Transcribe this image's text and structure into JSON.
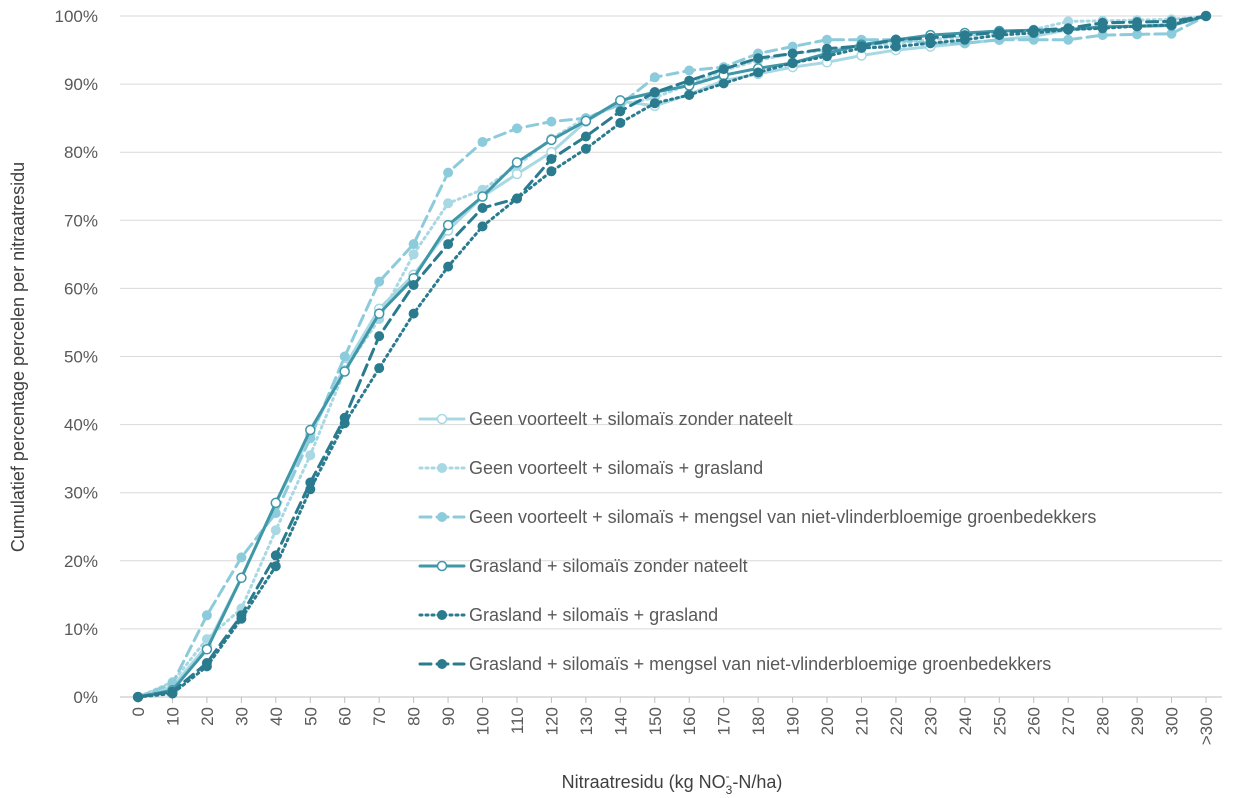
{
  "chart_data": {
    "type": "line",
    "title": "",
    "xlabel_parts": {
      "main": "Nitraatresidu (kg NO",
      "sub": "3",
      "sup": "-",
      "tail": "-N/ha)"
    },
    "ylabel": "Cumulatief percentage percelen per nitraatresidu",
    "categories": [
      "0",
      "10",
      "20",
      "30",
      "40",
      "50",
      "60",
      "70",
      "80",
      "90",
      "100",
      "110",
      "120",
      "130",
      "140",
      "150",
      "160",
      "170",
      "180",
      "190",
      "200",
      "210",
      "220",
      "230",
      "240",
      "250",
      "260",
      "270",
      "280",
      "290",
      "300",
      ">300"
    ],
    "ylim": [
      0,
      100
    ],
    "yticks": [
      0,
      10,
      20,
      30,
      40,
      50,
      60,
      70,
      80,
      90,
      100
    ],
    "ytick_labels": [
      "0%",
      "10%",
      "20%",
      "30%",
      "40%",
      "50%",
      "60%",
      "70%",
      "80%",
      "90%",
      "100%"
    ],
    "grid": "horizontal",
    "legend_position": "inside-center-right",
    "series": [
      {
        "name": "Geen voorteelt + silomaïs zonder nateelt",
        "color": "#a8d8e4",
        "dash": "solid",
        "marker": "open-circle",
        "values": [
          0,
          1.5,
          7.5,
          17.5,
          28.5,
          38.5,
          48.5,
          57,
          62,
          68.5,
          73.5,
          76.8,
          80,
          84.5,
          87.5,
          86.8,
          88.5,
          90.5,
          91.5,
          92.5,
          93.2,
          94.2,
          95,
          95.5,
          96,
          96.5,
          97,
          98,
          98.5,
          98.5,
          98.8,
          100
        ]
      },
      {
        "name": "Geen voorteelt + silomaïs + grasland",
        "color": "#a8d8e4",
        "dash": "dotted",
        "marker": "filled-circle",
        "values": [
          0,
          2.2,
          8.5,
          13,
          24.5,
          35.5,
          48,
          55.5,
          65,
          72.5,
          74.5,
          78,
          82,
          85,
          87,
          88,
          90,
          92,
          93.5,
          94.5,
          95,
          95.5,
          96,
          96.5,
          97,
          97.5,
          98,
          99.2,
          99.3,
          99.4,
          99.5,
          100
        ]
      },
      {
        "name": "Geen voorteelt + silomaïs + mengsel van niet-vlinderbloemige groenbedekkers",
        "color": "#8ccbdb",
        "dash": "dashed",
        "marker": "filled-circle",
        "values": [
          0,
          2,
          12,
          20.5,
          27,
          38,
          50,
          61,
          66.5,
          77,
          81.5,
          83.5,
          84.5,
          85,
          87,
          91,
          92,
          92.5,
          94.5,
          95.5,
          96.5,
          96.5,
          96.5,
          96,
          96,
          96.5,
          96.5,
          96.5,
          97.2,
          97.3,
          97.4,
          100
        ]
      },
      {
        "name": "Grasland + silomaïs zonder nateelt",
        "color": "#3f97a8",
        "dash": "solid",
        "marker": "open-circle",
        "values": [
          0,
          1,
          7,
          17.5,
          28.5,
          39.2,
          47.8,
          56.3,
          61.5,
          69.3,
          73.5,
          78.5,
          81.8,
          84.6,
          87.6,
          88.8,
          89.8,
          91.3,
          92.3,
          93.1,
          94.5,
          95.8,
          96.5,
          97.2,
          97.5,
          97.8,
          97.9,
          98,
          98.4,
          98.5,
          98.6,
          100
        ]
      },
      {
        "name": "Grasland + silomaïs + grasland",
        "color": "#2b7b8f",
        "dash": "dotted",
        "marker": "filled-circle",
        "values": [
          0,
          0.5,
          4.5,
          11.5,
          19.2,
          30.5,
          40.2,
          48.3,
          56.3,
          63.2,
          69.1,
          73.2,
          77.2,
          80.5,
          84.3,
          87.2,
          88.4,
          90.1,
          91.7,
          93.1,
          94.1,
          95.3,
          95.5,
          96,
          96.5,
          97.2,
          97.5,
          98,
          98.2,
          98.5,
          98.7,
          100
        ]
      },
      {
        "name": "Grasland + silomaïs + mengsel van niet-vlinderbloemige groenbedekkers",
        "color": "#2b7b8f",
        "dash": "dashed",
        "marker": "filled-circle",
        "values": [
          0,
          0.8,
          5,
          12,
          20.8,
          31.5,
          41,
          53,
          60.5,
          66.5,
          71.8,
          73.2,
          79,
          82.3,
          86,
          88.8,
          90.5,
          92.2,
          93.8,
          94.5,
          95.2,
          95.6,
          96.5,
          96.8,
          97.2,
          97.6,
          97.9,
          98.2,
          99,
          99.1,
          99.2,
          100
        ]
      }
    ]
  }
}
